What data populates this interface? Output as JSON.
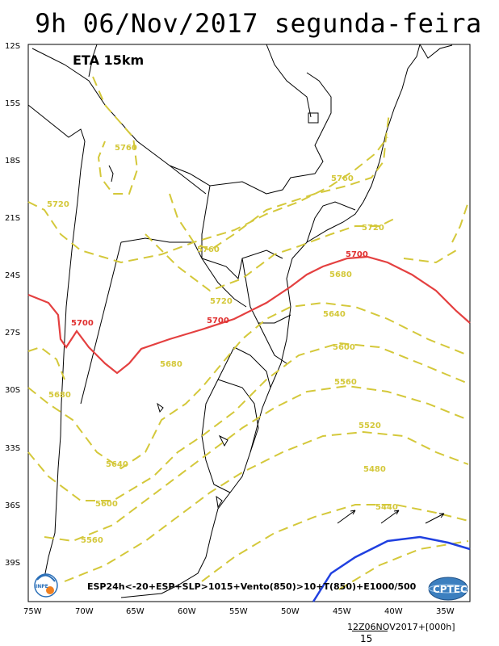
{
  "title": "9h 06/Nov/2017 segunda-feira",
  "model_label": "ETA 15km",
  "legend_text": "ESP24h<-20+ESP+SLP>1015+Vento(850)>10+T(850)+E1000/500",
  "footer_date": "12Z06NOV2017+[000h]",
  "footer_scale": "15",
  "logos": {
    "left": "INPE",
    "right": "CPTEC"
  },
  "lat_labels": [
    "12S",
    "15S",
    "18S",
    "21S",
    "24S",
    "27S",
    "30S",
    "33S",
    "36S",
    "39S"
  ],
  "lon_labels": [
    "75W",
    "70W",
    "65W",
    "60W",
    "55W",
    "50W",
    "45W",
    "40W",
    "35W"
  ],
  "contour_labels": {
    "yellow": [
      "5760",
      "5760",
      "5720",
      "5760",
      "5720",
      "5720",
      "5680",
      "5640",
      "5600",
      "5680",
      "5680",
      "5560",
      "5520",
      "5640",
      "5480",
      "5600",
      "5440",
      "5560"
    ],
    "red": [
      "5700",
      "5700",
      "5700"
    ]
  },
  "colors": {
    "yellow_contour": "#d4c83a",
    "red_contour": "#e44040",
    "blue_contour": "#2040e0",
    "coast": "#000000"
  }
}
